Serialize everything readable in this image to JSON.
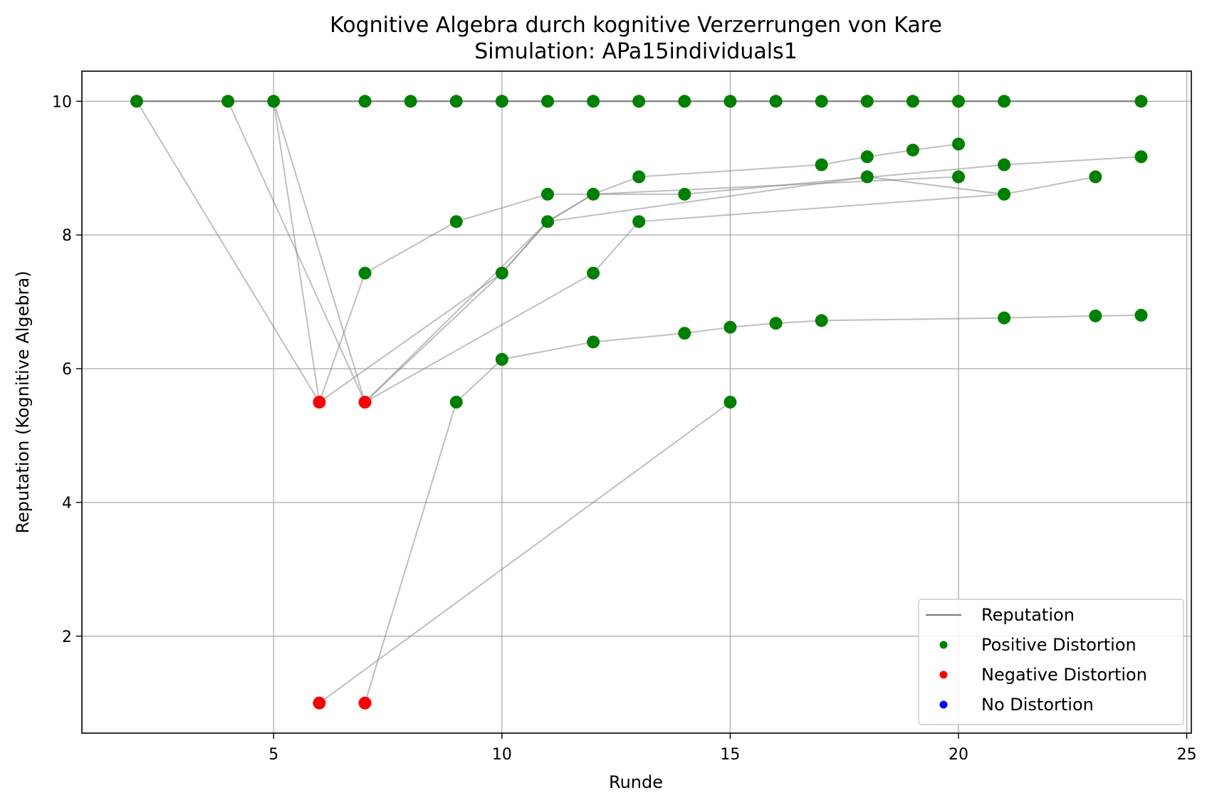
{
  "chart_data": {
    "type": "scatter",
    "title": "Kognitive Algebra durch kognitive Verzerrungen von Kare",
    "subtitle": "Simulation: APa15individuals1",
    "xlabel": "Runde",
    "ylabel": "Reputation (Kognitive Algebra)",
    "xlim": [
      0.8,
      25.1
    ],
    "ylim": [
      0.55,
      10.45
    ],
    "xticks": [
      5,
      10,
      15,
      20,
      25
    ],
    "yticks": [
      2,
      4,
      6,
      8,
      10
    ],
    "grid": true,
    "legend_position": "lower right",
    "legend": [
      {
        "label": "Reputation",
        "kind": "line",
        "color": "#808080"
      },
      {
        "label": "Positive Distortion",
        "kind": "marker",
        "color": "#008000"
      },
      {
        "label": "Negative Distortion",
        "kind": "marker",
        "color": "#ff0000"
      },
      {
        "label": "No Distortion",
        "kind": "marker",
        "color": "#0000ff"
      }
    ],
    "reputation_line": {
      "x": [
        2,
        24
      ],
      "y": [
        10,
        10
      ]
    },
    "connections": [
      [
        [
          2,
          10
        ],
        [
          6,
          5.5
        ]
      ],
      [
        [
          4,
          10
        ],
        [
          7,
          5.5
        ]
      ],
      [
        [
          5,
          10
        ],
        [
          6,
          5.5
        ]
      ],
      [
        [
          5,
          10
        ],
        [
          7,
          5.5
        ]
      ],
      [
        [
          6,
          5.5
        ],
        [
          7,
          7.43
        ]
      ],
      [
        [
          7,
          7.43
        ],
        [
          9,
          8.2
        ]
      ],
      [
        [
          9,
          8.2
        ],
        [
          11,
          8.61
        ]
      ],
      [
        [
          11,
          8.61
        ],
        [
          14,
          8.61
        ]
      ],
      [
        [
          14,
          8.61
        ],
        [
          21,
          9.05
        ]
      ],
      [
        [
          21,
          9.05
        ],
        [
          24,
          9.17
        ]
      ],
      [
        [
          6,
          5.5
        ],
        [
          10,
          7.43
        ]
      ],
      [
        [
          10,
          7.43
        ],
        [
          11,
          8.2
        ]
      ],
      [
        [
          11,
          8.2
        ],
        [
          12,
          8.61
        ]
      ],
      [
        [
          12,
          8.61
        ],
        [
          20,
          8.87
        ]
      ],
      [
        [
          7,
          5.5
        ],
        [
          10,
          7.43
        ]
      ],
      [
        [
          10,
          7.43
        ],
        [
          11,
          8.2
        ]
      ],
      [
        [
          11,
          8.2
        ],
        [
          12,
          8.61
        ]
      ],
      [
        [
          12,
          8.61
        ],
        [
          13,
          8.87
        ]
      ],
      [
        [
          13,
          8.87
        ],
        [
          17,
          9.05
        ]
      ],
      [
        [
          17,
          9.05
        ],
        [
          18,
          9.17
        ]
      ],
      [
        [
          18,
          9.17
        ],
        [
          19,
          9.27
        ]
      ],
      [
        [
          19,
          9.27
        ],
        [
          20,
          9.36
        ]
      ],
      [
        [
          7,
          5.5
        ],
        [
          11,
          8.2
        ]
      ],
      [
        [
          11,
          8.2
        ],
        [
          18,
          8.87
        ]
      ],
      [
        [
          18,
          8.87
        ],
        [
          21,
          8.61
        ]
      ],
      [
        [
          21,
          8.61
        ],
        [
          23,
          8.87
        ]
      ],
      [
        [
          7,
          5.5
        ],
        [
          12,
          7.43
        ]
      ],
      [
        [
          12,
          7.43
        ],
        [
          13,
          8.2
        ]
      ],
      [
        [
          13,
          8.2
        ],
        [
          21,
          8.61
        ]
      ],
      [
        [
          7,
          1.0
        ],
        [
          9,
          5.5
        ]
      ],
      [
        [
          9,
          5.5
        ],
        [
          10,
          6.14
        ]
      ],
      [
        [
          10,
          6.14
        ],
        [
          12,
          6.4
        ]
      ],
      [
        [
          12,
          6.4
        ],
        [
          14,
          6.53
        ]
      ],
      [
        [
          14,
          6.53
        ],
        [
          15,
          6.62
        ]
      ],
      [
        [
          15,
          6.62
        ],
        [
          16,
          6.68
        ]
      ],
      [
        [
          16,
          6.68
        ],
        [
          17,
          6.72
        ]
      ],
      [
        [
          17,
          6.72
        ],
        [
          21,
          6.76
        ]
      ],
      [
        [
          21,
          6.76
        ],
        [
          23,
          6.79
        ]
      ],
      [
        [
          23,
          6.79
        ],
        [
          24,
          6.8
        ]
      ],
      [
        [
          6,
          1.0
        ],
        [
          15,
          5.5
        ]
      ]
    ],
    "positive_points": [
      [
        2,
        10
      ],
      [
        4,
        10
      ],
      [
        5,
        10
      ],
      [
        7,
        10
      ],
      [
        8,
        10
      ],
      [
        9,
        10
      ],
      [
        10,
        10
      ],
      [
        11,
        10
      ],
      [
        12,
        10
      ],
      [
        13,
        10
      ],
      [
        14,
        10
      ],
      [
        15,
        10
      ],
      [
        16,
        10
      ],
      [
        17,
        10
      ],
      [
        18,
        10
      ],
      [
        19,
        10
      ],
      [
        20,
        10
      ],
      [
        21,
        10
      ],
      [
        24,
        10
      ],
      [
        7,
        7.43
      ],
      [
        9,
        8.2
      ],
      [
        11,
        8.61
      ],
      [
        14,
        8.61
      ],
      [
        21,
        9.05
      ],
      [
        24,
        9.17
      ],
      [
        10,
        7.43
      ],
      [
        11,
        8.2
      ],
      [
        12,
        8.61
      ],
      [
        20,
        8.87
      ],
      [
        13,
        8.87
      ],
      [
        17,
        9.05
      ],
      [
        18,
        9.17
      ],
      [
        19,
        9.27
      ],
      [
        20,
        9.36
      ],
      [
        18,
        8.87
      ],
      [
        21,
        8.61
      ],
      [
        23,
        8.87
      ],
      [
        12,
        7.43
      ],
      [
        13,
        8.2
      ],
      [
        9,
        5.5
      ],
      [
        10,
        6.14
      ],
      [
        12,
        6.4
      ],
      [
        14,
        6.53
      ],
      [
        15,
        6.62
      ],
      [
        16,
        6.68
      ],
      [
        17,
        6.72
      ],
      [
        21,
        6.76
      ],
      [
        23,
        6.79
      ],
      [
        24,
        6.8
      ],
      [
        15,
        5.5
      ]
    ],
    "negative_points": [
      [
        6,
        5.5
      ],
      [
        7,
        5.5
      ],
      [
        6,
        1.0
      ],
      [
        7,
        1.0
      ]
    ],
    "no_distortion_points": []
  }
}
